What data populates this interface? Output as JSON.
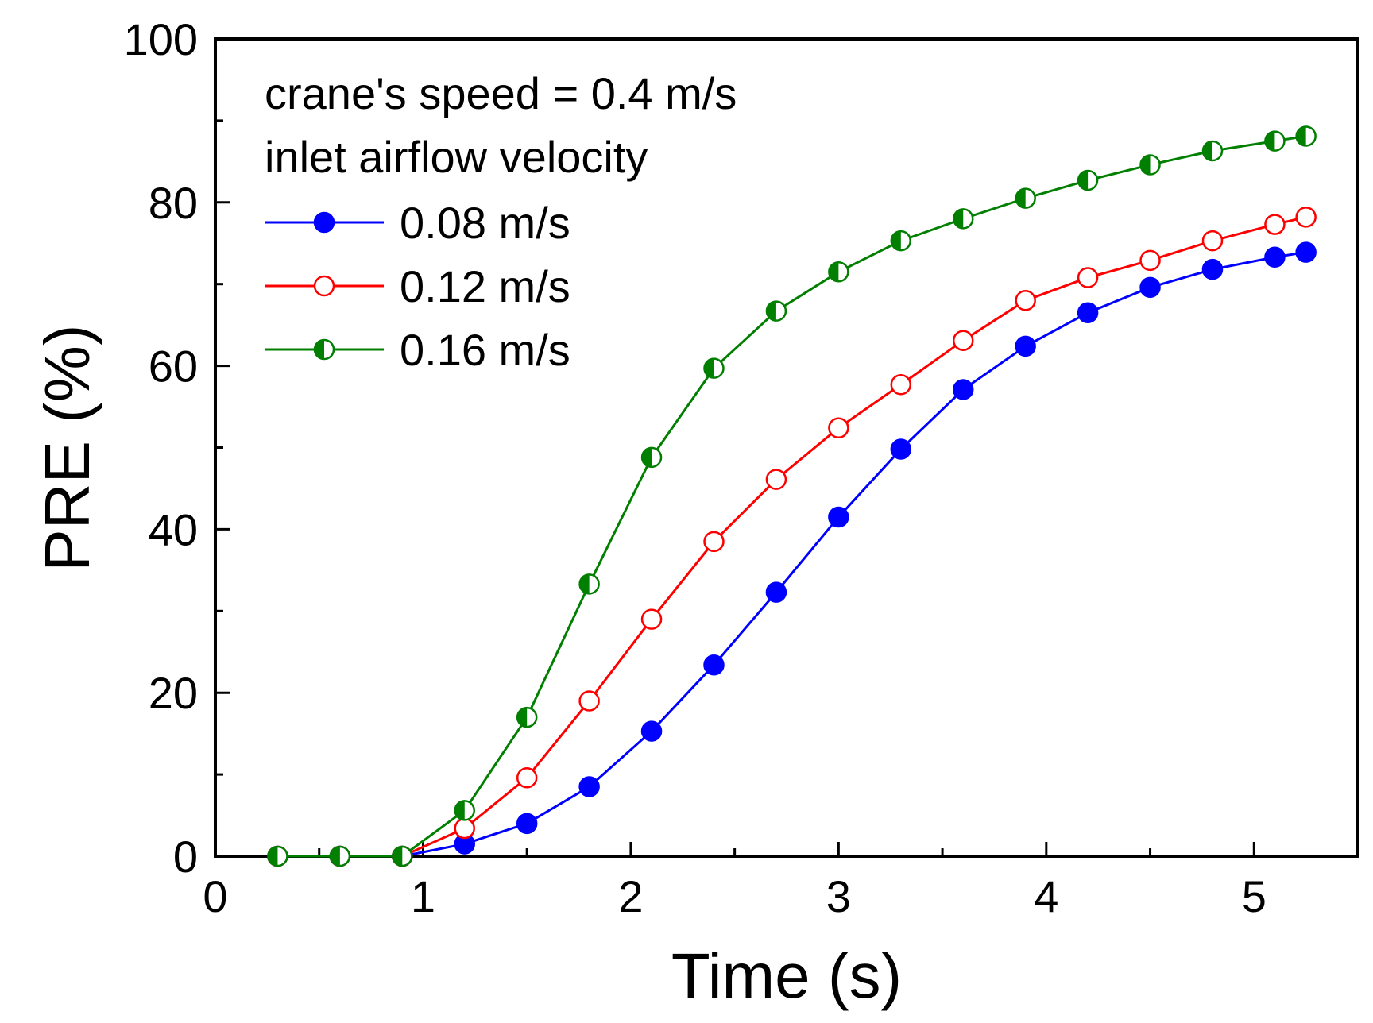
{
  "chart_data": {
    "type": "line",
    "title": "",
    "xlabel": "Time (s)",
    "ylabel": "PRE (%)",
    "xlim": [
      0,
      5.5
    ],
    "ylim": [
      0,
      100
    ],
    "xticks": [
      0,
      1,
      2,
      3,
      4,
      5
    ],
    "yticks": [
      0,
      20,
      40,
      60,
      80,
      100
    ],
    "xtick_labels": [
      "0",
      "1",
      "2",
      "3",
      "4",
      "5"
    ],
    "ytick_labels": [
      "0",
      "20",
      "40",
      "60",
      "80",
      "100"
    ],
    "grid": false,
    "legend": {
      "placement": "top-left",
      "annotation_lines": [
        "crane's speed = 0.4 m/s",
        "inlet airflow velocity"
      ]
    },
    "series": [
      {
        "name": "0.08 m/s",
        "color": "#0000ff",
        "marker": "filled-circle",
        "x": [
          0.3,
          0.6,
          0.9,
          1.2,
          1.5,
          1.8,
          2.1,
          2.4,
          2.7,
          3.0,
          3.3,
          3.6,
          3.9,
          4.2,
          4.5,
          4.8,
          5.1,
          5.25
        ],
        "values": [
          0,
          0,
          0,
          1.5,
          4,
          8.5,
          15.3,
          23.4,
          32.3,
          41.5,
          49.8,
          57.1,
          62.4,
          66.5,
          69.6,
          71.8,
          73.3,
          73.9
        ]
      },
      {
        "name": "0.12 m/s",
        "color": "#ff0000",
        "marker": "open-circle",
        "x": [
          0.3,
          0.6,
          0.9,
          1.2,
          1.5,
          1.8,
          2.1,
          2.4,
          2.7,
          3.0,
          3.3,
          3.6,
          3.9,
          4.2,
          4.5,
          4.8,
          5.1,
          5.25
        ],
        "values": [
          0,
          0,
          0,
          3.4,
          9.6,
          19,
          29,
          38.5,
          46.1,
          52.4,
          57.7,
          63.1,
          68,
          70.8,
          72.9,
          75.3,
          77.3,
          78.2
        ]
      },
      {
        "name": "0.16 m/s",
        "color": "#007f00",
        "marker": "half-filled-circle",
        "x": [
          0.3,
          0.6,
          0.9,
          1.2,
          1.5,
          1.8,
          2.1,
          2.4,
          2.7,
          3.0,
          3.3,
          3.6,
          3.9,
          4.2,
          4.5,
          4.8,
          5.1,
          5.25
        ],
        "values": [
          0,
          0,
          0,
          5.6,
          17,
          33.3,
          48.8,
          59.7,
          66.7,
          71.5,
          75.3,
          78,
          80.5,
          82.7,
          84.6,
          86.3,
          87.5,
          88.1
        ]
      }
    ]
  }
}
